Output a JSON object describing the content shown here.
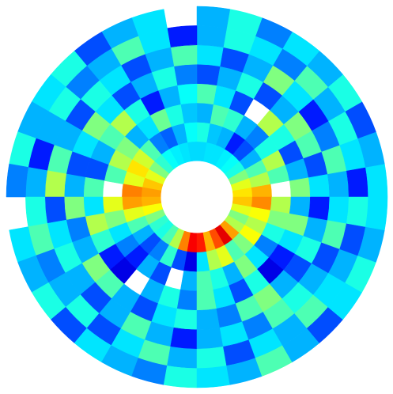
{
  "chart_data": {
    "type": "polar_heatmap",
    "colormap": "jet",
    "clim": [
      0,
      1
    ],
    "rlim": [
      0.19,
      1
    ],
    "values": [
      [
        0.65,
        0.6,
        0.5,
        0.4,
        0.38,
        0.36,
        0.35,
        0.35,
        0.34,
        0.34,
        0.35,
        0.36,
        0.38,
        0.42,
        0.5,
        0.6,
        0.68,
        0.72,
        0.7,
        0.62,
        0.5,
        0.42,
        0.4,
        0.45,
        0.55,
        0.75,
        0.88,
        0.85,
        0.7,
        0.8,
        0.9,
        0.72,
        0.55,
        0.5,
        0.6,
        0.68
      ],
      [
        0.7,
        0.55,
        0.45,
        0.3,
        0.2,
        0.15,
        0.3,
        0.32,
        0.4,
        0.38,
        0.3,
        0.22,
        0.25,
        0.45,
        0.58,
        0.65,
        0.6,
        0.75,
        0.72,
        0.6,
        0.45,
        0.3,
        0.2,
        0.25,
        0.42,
        0.2,
        0.1,
        0.35,
        0.55,
        0.6,
        0.45,
        0.5,
        0.62,
        0.55,
        0.62,
        0.74
      ],
      [
        null,
        0.45,
        0.55,
        0.4,
        0.25,
        0.3,
        0.42,
        0.45,
        0.3,
        0.32,
        0.4,
        0.48,
        0.35,
        0.3,
        0.5,
        0.55,
        0.45,
        null,
        0.6,
        0.5,
        0.35,
        0.25,
        0.15,
        0.3,
        0.2,
        null,
        0.3,
        0.45,
        0.4,
        0.3,
        0.5,
        0.35,
        0.25,
        0.4,
        0.5,
        0.55
      ],
      [
        0.5,
        0.3,
        0.2,
        0.4,
        0.55,
        null,
        0.2,
        0.35,
        0.45,
        0.38,
        0.3,
        0.15,
        0.4,
        0.55,
        0.45,
        0.3,
        0.2,
        0.45,
        0.35,
        0.55,
        0.42,
        0.15,
        0.1,
        null,
        0.3,
        0.4,
        0.25,
        0.45,
        0.35,
        0.2,
        0.4,
        0.1,
        0.15,
        0.35,
        0.5,
        0.3
      ],
      [
        0.35,
        0.2,
        0.45,
        0.5,
        0.3,
        0.2,
        0.4,
        0.3,
        0.2,
        0.25,
        0.4,
        0.3,
        0.2,
        0.35,
        0.5,
        0.35,
        0.2,
        0.3,
        0.5,
        0.25,
        0.3,
        0.5,
        0.45,
        0.3,
        0.2,
        0.35,
        0.4,
        0.3,
        0.25,
        0.45,
        0.5,
        0.3,
        0.2,
        0.4,
        0.3,
        0.15
      ],
      [
        0.3,
        0.45,
        0.25,
        0.15,
        0.35,
        0.5,
        0.3,
        0.2,
        0.35,
        0.45,
        0.3,
        0.2,
        0.35,
        0.4,
        0.2,
        0.3,
        0.45,
        0.55,
        0.2,
        0.35,
        0.4,
        0.3,
        0.2,
        0.3,
        0.45,
        0.3,
        0.15,
        0.3,
        0.35,
        0.25,
        0.45,
        0.4,
        0.3,
        0.2,
        0.45,
        0.35
      ],
      [
        0.15,
        0.35,
        0.4,
        0.3,
        0.45,
        0.25,
        0.35,
        0.4,
        0.3,
        0.15,
        0.35,
        0.45,
        0.3,
        0.25,
        0.4,
        0.3,
        0.15,
        0.3,
        0.4,
        0.45,
        0.25,
        0.3,
        0.4,
        0.2,
        0.35,
        0.45,
        0.3,
        0.4,
        0.2,
        0.35,
        0.3,
        0.45,
        0.35,
        0.3,
        0.2,
        0.4
      ],
      [
        0.35,
        0.3,
        0.2,
        0.4,
        0.3,
        0.35,
        0.25,
        0.4,
        0.3,
        null,
        0.35,
        0.3,
        0.2,
        0.4,
        0.35,
        0.3,
        0.4,
        0.25,
        null,
        0.35,
        0.3,
        0.4,
        0.2,
        0.35,
        0.3,
        0.25,
        0.4,
        0.35,
        0.3,
        0.45,
        0.3,
        0.2,
        0.35,
        0.4,
        0.3,
        0.35
      ]
    ]
  }
}
